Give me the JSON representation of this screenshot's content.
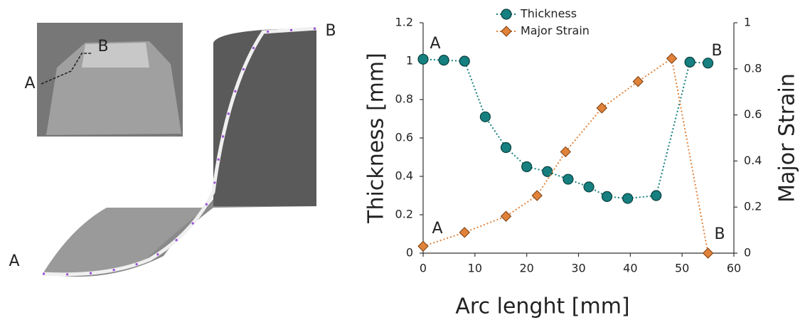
{
  "chart_data": {
    "type": "line",
    "xlabel": "Arc lenght [mm]",
    "ylabel": "Thickness [mm]",
    "y2label": "Major Strain",
    "xlim": [
      0,
      60
    ],
    "xticks": [
      0,
      10,
      20,
      30,
      40,
      50,
      60
    ],
    "ylim": [
      0,
      1.2
    ],
    "yticks": [
      0,
      0.2,
      0.4,
      0.6,
      0.8,
      1,
      1.2
    ],
    "y2lim": [
      0,
      1
    ],
    "y2ticks": [
      0,
      0.2,
      0.4,
      0.6,
      0.8,
      1
    ],
    "legend": "top",
    "series": [
      {
        "name": "Thickness",
        "color": "#15807f",
        "marker": "circle",
        "x": [
          0,
          4,
          8,
          12,
          16,
          20,
          24,
          28,
          32,
          35.5,
          39.5,
          45,
          51.5,
          55
        ],
        "values": [
          1.01,
          1.005,
          1.0,
          0.71,
          0.55,
          0.45,
          0.425,
          0.385,
          0.345,
          0.295,
          0.285,
          0.3,
          0.995,
          0.99
        ]
      },
      {
        "name": "Major Strain",
        "color": "#e0823a",
        "marker": "diamond",
        "axis": "y2",
        "x": [
          0,
          8,
          16,
          22,
          27.5,
          34.5,
          41.5,
          48,
          55
        ],
        "values": [
          0.03,
          0.09,
          0.16,
          0.25,
          0.44,
          0.63,
          0.745,
          0.845,
          0.0
        ]
      }
    ],
    "annotations": [
      "A",
      "B",
      "A",
      "B"
    ]
  },
  "photo": {
    "labels": [
      "A",
      "B",
      "A",
      "B"
    ]
  }
}
